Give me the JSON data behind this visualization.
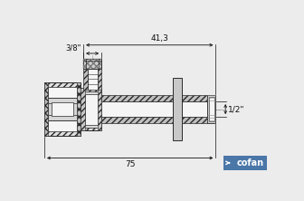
{
  "bg_color": "#ececec",
  "line_color": "#2a2a2a",
  "hatch_color": "#555555",
  "body_fill": "#e0e0e0",
  "white_fill": "#f5f5f5",
  "dark_fill": "#c0c0c0",
  "handle_fill": "#c8c8c8",
  "pipe_fill": "#d8d8d8",
  "dim_color": "#111111",
  "cofan_bg": "#4a76a8",
  "cofan_text": "cofan",
  "dim_41_3": "41,3",
  "dim_3_8": "3/8\"",
  "dim_1_2": "1/2\"",
  "dim_75": "75"
}
